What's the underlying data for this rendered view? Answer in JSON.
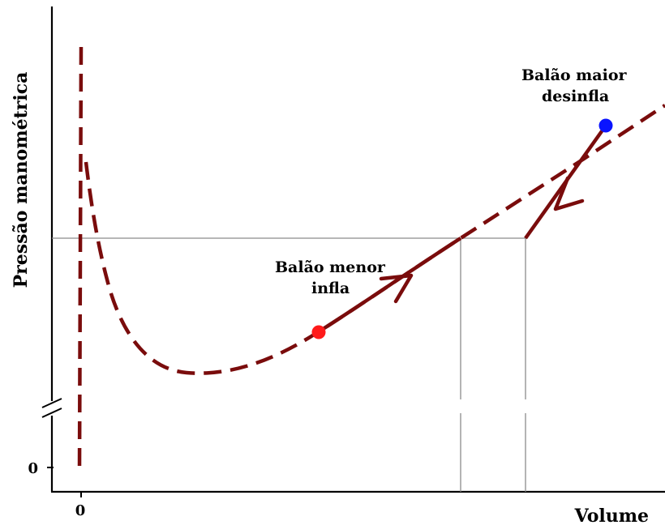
{
  "diagram": {
    "axis_y_label": "Pressão  manométrica",
    "axis_x_label": "Volume",
    "tick_x_zero": "0",
    "tick_y_zero": "0",
    "annotation_small": {
      "line1": "Balão menor",
      "line2": "infla"
    },
    "annotation_large": {
      "line1": "Balão maior",
      "line2": "desinfla"
    }
  },
  "colors": {
    "curve": "#7a0c0c",
    "axis": "#000000",
    "guide": "#8c8c8c",
    "marker_small": "#ff1a1a",
    "marker_large": "#0a14ff"
  }
}
